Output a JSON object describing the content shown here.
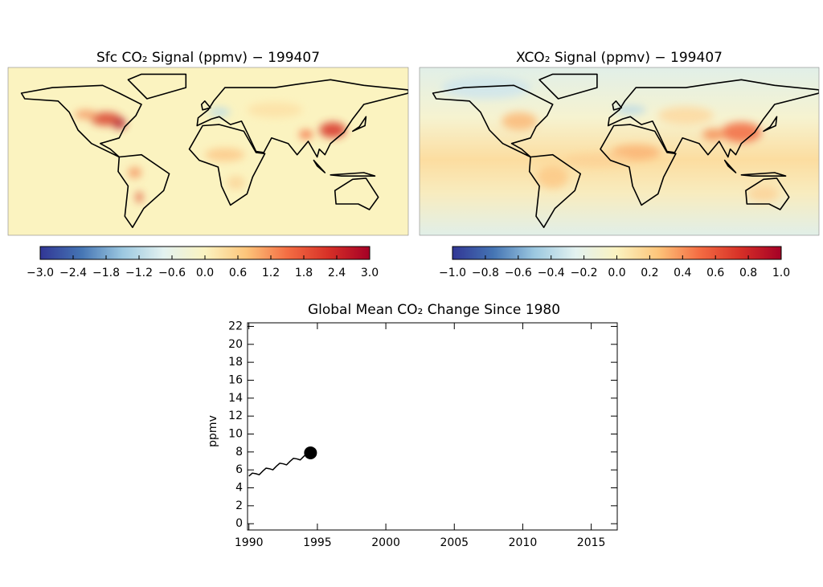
{
  "chart_data": [
    {
      "type": "map",
      "title": "Sfc CO₂ Signal (ppmv) − 199407",
      "clim": [
        -3,
        3
      ],
      "cticks": [
        {
          "value": -3,
          "label": "−3.0"
        },
        {
          "value": -2.4,
          "label": "−2.4"
        },
        {
          "value": -1.8,
          "label": "−1.8"
        },
        {
          "value": -1.2,
          "label": "−1.2"
        },
        {
          "value": -0.6,
          "label": "−0.6"
        },
        {
          "value": 0,
          "label": "0.0"
        },
        0.6,
        1.2,
        1.8,
        2.4,
        {
          "value": 3,
          "label": "3.0"
        }
      ],
      "colormap": [
        "#313695",
        "#4575b4",
        "#9cc8e0",
        "#e3f2f0",
        "#fbf3c0",
        "#fdc57a",
        "#f46d43",
        "#d73027",
        "#a50026"
      ]
    },
    {
      "type": "map",
      "title": "XCO₂ Signal (ppmv) − 199407",
      "clim": [
        -1,
        1
      ],
      "cticks": [
        {
          "value": -1,
          "label": "−1.0"
        },
        {
          "value": -0.8,
          "label": "−0.8"
        },
        {
          "value": -0.6,
          "label": "−0.6"
        },
        {
          "value": -0.4,
          "label": "−0.4"
        },
        {
          "value": -0.2,
          "label": "−0.2"
        },
        {
          "value": 0,
          "label": "0.0"
        },
        0.2,
        0.4,
        0.6,
        0.8,
        {
          "value": 1,
          "label": "1.0"
        }
      ],
      "colormap": [
        "#313695",
        "#4575b4",
        "#9cc8e0",
        "#e3f2f0",
        "#fbf3c0",
        "#fdc57a",
        "#f46d43",
        "#d73027",
        "#a50026"
      ]
    },
    {
      "type": "line",
      "title": "Global Mean CO₂ Change Since 1980",
      "ylabel": "ppmv",
      "color": "#000000",
      "x": [
        1990.0,
        1990.25,
        1990.5,
        1990.75,
        1991.0,
        1991.25,
        1991.5,
        1991.75,
        1992.0,
        1992.25,
        1992.5,
        1992.75,
        1993.0,
        1993.25,
        1993.5,
        1993.75,
        1994.0,
        1994.25,
        1994.5
      ],
      "values": [
        5.3,
        5.64,
        5.58,
        5.46,
        5.85,
        6.19,
        6.13,
        6.01,
        6.4,
        6.74,
        6.68,
        6.56,
        6.95,
        7.29,
        7.23,
        7.11,
        7.5,
        7.84,
        7.9
      ],
      "xlim": [
        1989.9,
        2016.9
      ],
      "ylim": [
        -0.7,
        22.4
      ],
      "xticks": [
        1990,
        1995,
        2000,
        2005,
        2010,
        2015
      ],
      "yticks": [
        0,
        2,
        4,
        6,
        8,
        10,
        12,
        14,
        16,
        18,
        20,
        22
      ]
    }
  ]
}
